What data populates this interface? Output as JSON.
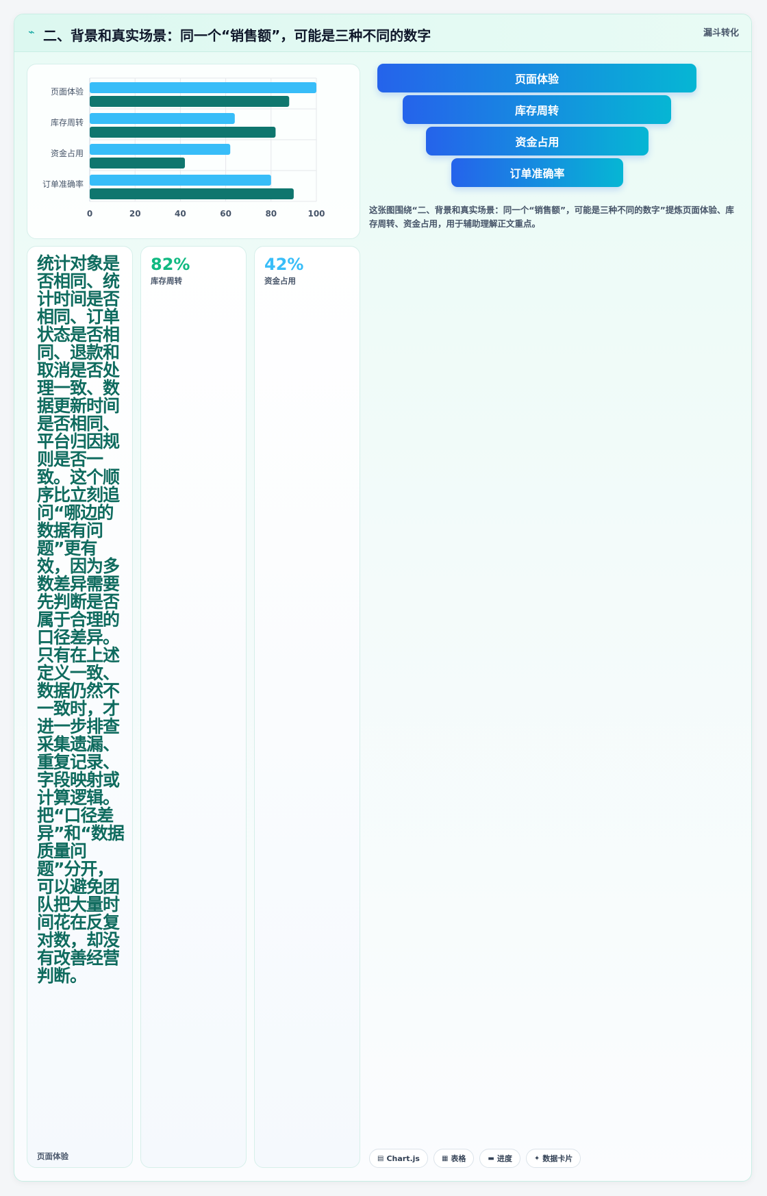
{
  "header": {
    "icon": "bolt-icon",
    "title": "二、背景和真实场景：同一个“销售额”，可能是三种不同的数字",
    "tag": "漏斗转化"
  },
  "chart_data": {
    "type": "bar",
    "orientation": "horizontal",
    "categories": [
      "页面体验",
      "库存周转",
      "资金占用",
      "订单准确率"
    ],
    "series": [
      {
        "color": "#38bdf8",
        "values": [
          100,
          64,
          62,
          80
        ]
      },
      {
        "color": "#0f766e",
        "values": [
          88,
          82,
          42,
          90
        ]
      }
    ],
    "xlim": [
      0,
      100
    ],
    "xticks": [
      0,
      20,
      40,
      60,
      80,
      100
    ],
    "grid": true,
    "title": "",
    "xlabel": "",
    "ylabel": ""
  },
  "funnel": {
    "steps": [
      "页面体验",
      "库存周转",
      "资金占用",
      "订单准确率"
    ],
    "description": "这张图围绕“二、背景和真实场景：同一个“销售额”，可能是三种不同的数字”提炼页面体验、库存周转、资金占用，用于辅助理解正文重点。",
    "colors": {
      "start": "#2563eb",
      "end": "#06b6d4"
    }
  },
  "stats": [
    {
      "value": "统计对象是否相同、统计时间是否相同、订单状态是否相同、退款和取消是否处理一致、数据更新时间是否相同、平台归因规则是否一致。这个顺序比立刻追问“哪边的数据有问题”更有效，因为多数差异需要先判断是否属于合理的口径差异。 只有在上述定义一致、数据仍然不一致时，才进一步排查采集遗漏、重复记录、字段映射或计算逻辑。把“口径差异”和“数据质量问题”分开，可以避免团队把大量时间花在反复对数，却没有改善经营判断。",
      "label": "页面体验",
      "color": "#0f6b5e"
    },
    {
      "value": "82%",
      "label": "库存周转",
      "color": "#10b981"
    },
    {
      "value": "42%",
      "label": "资金占用",
      "color": "#38bdf8"
    }
  ],
  "chips": [
    {
      "icon": "chart-icon",
      "glyph": "▤",
      "label": "Chart.js"
    },
    {
      "icon": "table-icon",
      "glyph": "▦",
      "label": "表格"
    },
    {
      "icon": "progress-icon",
      "glyph": "▬",
      "label": "进度"
    },
    {
      "icon": "card-icon",
      "glyph": "✦",
      "label": "数据卡片"
    }
  ]
}
